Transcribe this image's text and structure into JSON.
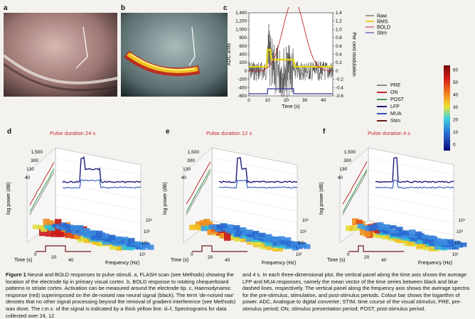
{
  "panels": {
    "a": {
      "label": "a"
    },
    "b": {
      "label": "b"
    },
    "c": {
      "label": "c",
      "y_left_label": "ADC units",
      "y_right_label": "Per cent modulation",
      "x_label": "Time (s)",
      "y_left_ticks": [
        "1,400",
        "1,200",
        "1,000",
        "800",
        "600",
        "400",
        "200",
        "0",
        "-200",
        "-400",
        "-600"
      ],
      "y_right_ticks": [
        "1.4",
        "1.2",
        "1.0",
        "0.8",
        "0.6",
        "0.4",
        "0.2",
        "0",
        "-0.2",
        "-0.4",
        "-0.6"
      ],
      "x_ticks": [
        "0",
        "10",
        "20",
        "30",
        "40"
      ],
      "legend": [
        "Raw",
        "RMS",
        "BOLD",
        "Stim"
      ]
    },
    "d": {
      "label": "d",
      "pulse": "Pulse duration 24 s",
      "tick_labels": [
        "1,500",
        "300",
        "130",
        "40"
      ],
      "freq_ticks": [
        "10¹",
        "10²",
        "10³",
        "10⁴"
      ],
      "time_ticks": [
        "0",
        "20",
        "40"
      ]
    },
    "e": {
      "label": "e",
      "pulse": "Pulse duration 12 s",
      "tick_labels": [
        "1,500",
        "300",
        "130",
        "40"
      ],
      "freq_ticks": [
        "10¹",
        "10²",
        "10³",
        "10⁴"
      ],
      "time_ticks": [
        "0",
        "20",
        "40"
      ]
    },
    "f": {
      "label": "f",
      "pulse": "Pulse duration 4 s",
      "tick_labels": [
        "1,500",
        "300",
        "130",
        "40"
      ],
      "freq_ticks": [
        "10¹",
        "10²",
        "10³",
        "10⁴"
      ],
      "time_ticks": [
        "0",
        "20",
        "40"
      ]
    }
  },
  "axes_3d": {
    "y_label": "log power (dB)",
    "x_label": "Time (s)",
    "z_label": "Frequency (Hz)"
  },
  "legend2": [
    "PRE",
    "ON",
    "POST",
    "LFP",
    "MUA",
    "Stim"
  ],
  "colorbar_ticks": [
    "60",
    "50",
    "40",
    "30",
    "20",
    "10",
    "0"
  ],
  "colors": {
    "pre": "#8a8a8a",
    "on": "#c0282a",
    "post": "#3a9a4a",
    "lfp": "#1a1a7a",
    "mua": "#2e57b8",
    "stim": "#6a1a1a",
    "raw": "#444444",
    "rms": "#e6d21a",
    "bold": "#c0282a",
    "stimline": "#2e2e9a"
  },
  "caption": {
    "title": "Figure 1",
    "left": " Neural and BOLD responses to pulse stimuli. a, FLASH scan (see Methods) showing the location of the electrode tip in primary visual cortex. b, BOLD response to rotating chequerboard patterns in striate cortex. Activation can be measured around the electrode tip. c, Haemodynamic response (red) superimposed on the de-noised raw neural signal (black). The term ‘de-noised raw’ denotes that no other signal processing beyond the removal of gradient interference (see Methods) was done. The r.m.s. of the signal is indicated by a thick yellow line. d–f, Spectrograms for data collected over 24, 12",
    "right": "and 4 s. In each three-dimensional plot, the vertical panel along the time axis shows the average LFP and MUA responses, namely the mean vector of the time series between black and blue dashed lines, respectively. The vertical panel along the frequency axis shows the average spectra for the pre-stimulus, stimulation, and post-stimulus periods. Colour bar shows the logarithm of power. ADC, Analogue to digital converter; STIM, time course of the visual stimulus; PRE, pre-stimulus period; ON, stimulus presentation period; POST, post-stimulus period."
  }
}
